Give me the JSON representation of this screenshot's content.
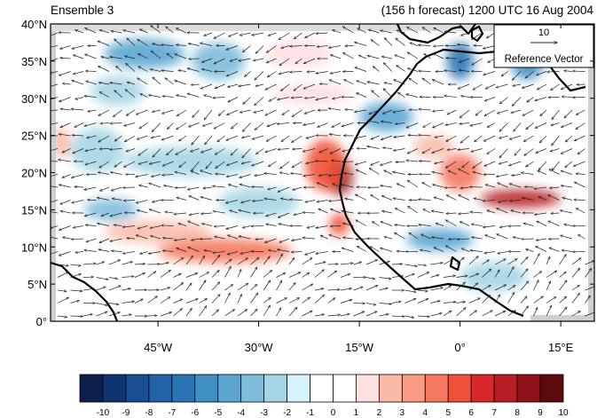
{
  "header": {
    "left_title": "Ensemble 3",
    "right_title": "(156 h forecast) 1200 UTC 16 Aug 2004"
  },
  "reference_vector": {
    "value": "10",
    "label": "Reference Vector"
  },
  "map": {
    "lon_range": [
      -61,
      20
    ],
    "lat_range": [
      0,
      40
    ],
    "lat_ticks": [
      {
        "value": 40,
        "label": "40°N"
      },
      {
        "value": 35,
        "label": "35°N"
      },
      {
        "value": 30,
        "label": "30°N"
      },
      {
        "value": 25,
        "label": "25°N"
      },
      {
        "value": 20,
        "label": "20°N"
      },
      {
        "value": 15,
        "label": "15°N"
      },
      {
        "value": 10,
        "label": "10°N"
      },
      {
        "value": 5,
        "label": "5°N"
      },
      {
        "value": 0,
        "label": "0°"
      }
    ],
    "lon_ticks": [
      {
        "value": -45,
        "label": "45°W"
      },
      {
        "value": -30,
        "label": "30°W"
      },
      {
        "value": -15,
        "label": "15°W"
      },
      {
        "value": 0,
        "label": "0°"
      },
      {
        "value": 15,
        "label": "15°E"
      }
    ],
    "features": [
      {
        "type": "neg",
        "level": 4,
        "lon": -47,
        "lat": 36,
        "rx": 6,
        "ry": 2
      },
      {
        "type": "neg",
        "level": 3,
        "lon": -36,
        "lat": 35,
        "rx": 4,
        "ry": 2.5
      },
      {
        "type": "neg",
        "level": 2,
        "lon": -51,
        "lat": 31,
        "rx": 4,
        "ry": 2
      },
      {
        "type": "pos",
        "level": 2,
        "lon": -24,
        "lat": 36,
        "rx": 5,
        "ry": 2
      },
      {
        "type": "pos",
        "level": 2,
        "lon": -22,
        "lat": 30.5,
        "rx": 6,
        "ry": 1.5
      },
      {
        "type": "neg",
        "level": 4,
        "lon": -11,
        "lat": 27.5,
        "rx": 4,
        "ry": 2
      },
      {
        "type": "neg",
        "level": 6,
        "lon": 0,
        "lat": 35,
        "rx": 2,
        "ry": 2.5
      },
      {
        "type": "neg",
        "level": 5,
        "lon": 10,
        "lat": 35,
        "rx": 2.5,
        "ry": 2.5
      },
      {
        "type": "neg",
        "level": 2,
        "lon": -54,
        "lat": 23,
        "rx": 4,
        "ry": 3
      },
      {
        "type": "pos",
        "level": 3,
        "lon": -59.5,
        "lat": 24,
        "rx": 1.5,
        "ry": 2
      },
      {
        "type": "neg",
        "level": 2,
        "lon": -40,
        "lat": 21.5,
        "rx": 10,
        "ry": 2
      },
      {
        "type": "pos",
        "level": 9,
        "lon": -18,
        "lat": 19.5,
        "rx": 2,
        "ry": 2.5
      },
      {
        "type": "pos",
        "level": 6,
        "lon": -20,
        "lat": 21,
        "rx": 3,
        "ry": 3.5
      },
      {
        "type": "pos",
        "level": 6,
        "lon": -18,
        "lat": 13,
        "rx": 1.5,
        "ry": 1.5
      },
      {
        "type": "pos",
        "level": 5,
        "lon": 0,
        "lat": 20,
        "rx": 3,
        "ry": 2.5
      },
      {
        "type": "pos",
        "level": 8,
        "lon": 9,
        "lat": 16.5,
        "rx": 6,
        "ry": 1.2
      },
      {
        "type": "pos",
        "level": 3,
        "lon": -4,
        "lat": 23.5,
        "rx": 3,
        "ry": 1.5
      },
      {
        "type": "pos",
        "level": 5,
        "lon": -35,
        "lat": 9.5,
        "rx": 10,
        "ry": 1.6
      },
      {
        "type": "pos",
        "level": 3,
        "lon": -45,
        "lat": 12,
        "rx": 8,
        "ry": 1.5
      },
      {
        "type": "neg",
        "level": 4,
        "lon": -3,
        "lat": 11,
        "rx": 5,
        "ry": 1.5
      },
      {
        "type": "neg",
        "level": 2,
        "lon": -30,
        "lat": 16,
        "rx": 6,
        "ry": 2
      },
      {
        "type": "neg",
        "level": 3,
        "lon": -52,
        "lat": 15,
        "rx": 4,
        "ry": 1.5
      },
      {
        "type": "neg",
        "level": 2,
        "lon": 5,
        "lat": 6,
        "rx": 5,
        "ry": 2
      }
    ]
  },
  "colorbar": {
    "colors": [
      "#0d1f4c",
      "#0f3472",
      "#1a4d93",
      "#2362a6",
      "#2a73b4",
      "#3f8fc2",
      "#5ba6d0",
      "#7dbcdb",
      "#a5d5e5",
      "#d6f3fb",
      "#ffffff",
      "#ffffff",
      "#fde0e0",
      "#fbb9a8",
      "#f79b83",
      "#f4785d",
      "#ee5339",
      "#d8282c",
      "#b81d24",
      "#8f121a",
      "#5c0a0c"
    ],
    "labels": [
      "-10",
      "-9",
      "-8",
      "-7",
      "-6",
      "-5",
      "-4",
      "-3",
      "-2",
      "-1",
      "0",
      "1",
      "2",
      "3",
      "4",
      "5",
      "6",
      "7",
      "8",
      "9",
      "10"
    ]
  }
}
